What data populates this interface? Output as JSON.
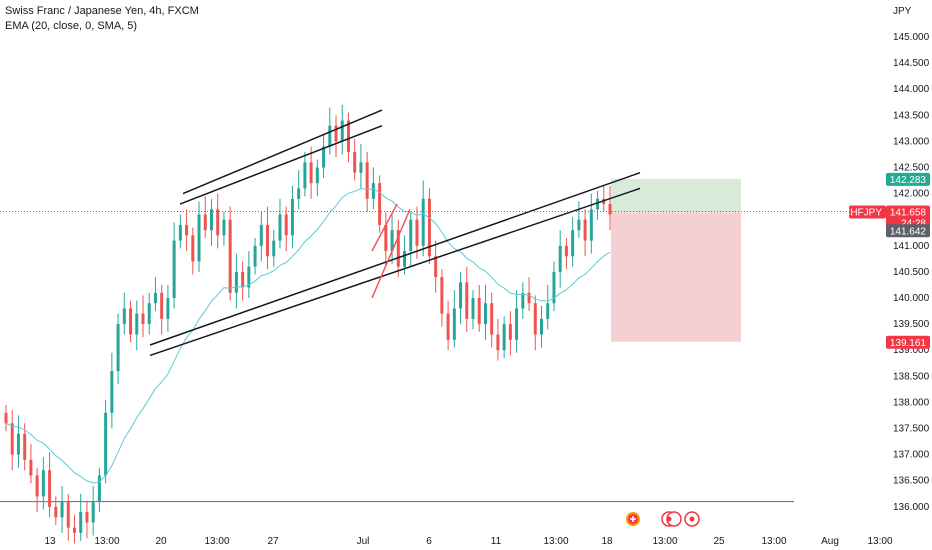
{
  "header": {
    "symbol_title": "Swiss Franc / Japanese Yen, 4h, FXCM",
    "indicator": "EMA (20, close, 0, SMA, 5)"
  },
  "price_axis": {
    "currency": "JPY",
    "ticks": [
      "145.000",
      "144.500",
      "144.000",
      "143.500",
      "143.000",
      "142.500",
      "142.000",
      "141.000",
      "140.500",
      "140.000",
      "139.500",
      "139.000",
      "138.500",
      "138.000",
      "137.500",
      "137.000",
      "136.500",
      "136.000"
    ],
    "tick_values": [
      145.0,
      144.5,
      144.0,
      143.5,
      143.0,
      142.5,
      142.0,
      141.0,
      140.5,
      140.0,
      139.5,
      139.0,
      138.5,
      138.0,
      137.5,
      137.0,
      136.5,
      136.0
    ]
  },
  "time_axis": {
    "labels": [
      "13",
      "13:00",
      "20",
      "13:00",
      "27",
      "Jul",
      "6",
      "11",
      "13:00",
      "18",
      "13:00",
      "25",
      "13:00",
      "Aug",
      "13:00"
    ]
  },
  "badges": {
    "target_price": "142.283",
    "symbol": "CHFJPY",
    "last_price": "141.658",
    "countdown": "24:28",
    "entry_price": "141.642",
    "stop_price": "139.161"
  },
  "colors": {
    "up": "#26a69a",
    "down": "#ef5350",
    "ema": "#5fc9d6",
    "profit_zone": "#d8ebd9",
    "loss_zone": "#f4d0d3",
    "target_badge": "#22ab94",
    "symbol_badge": "#f23645",
    "entry_badge": "#5d606b",
    "stop_badge": "#f23645"
  },
  "icons": [
    "plus-event-icon",
    "event-marker-icon",
    "event-marker-icon"
  ],
  "chart_data": {
    "type": "candlestick",
    "symbol": "CHFJPY",
    "timeframe": "4h",
    "yaxis_range": [
      135.8,
      145.3
    ],
    "ema_period": 20,
    "position": {
      "side": "short",
      "entry": 141.642,
      "target": 142.283,
      "stop": 139.161
    },
    "horizontal_line": 136.1,
    "trendlines": [
      {
        "from": [
          183,
          142.0
        ],
        "to": [
          382,
          143.6
        ]
      },
      {
        "from": [
          180,
          141.8
        ],
        "to": [
          382,
          143.3
        ]
      },
      {
        "from": [
          150,
          139.1
        ],
        "to": [
          640,
          142.4
        ]
      },
      {
        "from": [
          150,
          138.9
        ],
        "to": [
          640,
          142.1
        ]
      }
    ],
    "closes": [
      137.6,
      137.0,
      137.4,
      136.9,
      136.6,
      136.2,
      136.7,
      136.0,
      135.8,
      136.1,
      135.6,
      135.5,
      135.9,
      135.7,
      136.1,
      136.6,
      137.8,
      138.6,
      139.5,
      139.8,
      139.3,
      139.7,
      139.5,
      139.9,
      140.1,
      139.6,
      140.0,
      141.1,
      141.4,
      141.2,
      140.7,
      141.6,
      141.3,
      141.7,
      141.2,
      141.5,
      140.1,
      140.5,
      140.2,
      140.6,
      141.0,
      141.4,
      140.8,
      141.1,
      141.6,
      141.2,
      141.9,
      142.1,
      142.6,
      142.2,
      142.5,
      142.9,
      143.3,
      143.0,
      143.4,
      142.8,
      142.4,
      142.6,
      141.9,
      142.2,
      141.4,
      140.9,
      141.3,
      140.6,
      140.9,
      141.5,
      141.0,
      141.9,
      140.8,
      140.4,
      139.7,
      139.2,
      139.8,
      140.3,
      139.6,
      140.0,
      139.5,
      139.9,
      139.3,
      139.0,
      139.5,
      139.2,
      139.8,
      140.1,
      139.9,
      139.3,
      139.6,
      139.9,
      140.5,
      141.0,
      140.8,
      141.3,
      141.5,
      141.1,
      141.7,
      141.9,
      141.8,
      141.6
    ]
  }
}
